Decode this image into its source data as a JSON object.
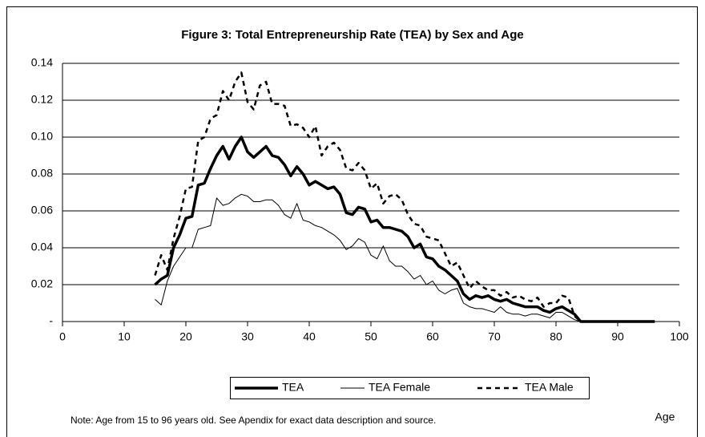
{
  "chart_data": {
    "type": "line",
    "title": "Figure 3: Total Entrepreneurship Rate (TEA) by Sex and Age",
    "x_label": "Age",
    "note": "Note: Age from 15 to 96 years old. See Apendix for exact data description and source.",
    "x": [
      15,
      16,
      17,
      18,
      19,
      20,
      21,
      22,
      23,
      24,
      25,
      26,
      27,
      28,
      29,
      30,
      31,
      32,
      33,
      34,
      35,
      36,
      37,
      38,
      39,
      40,
      41,
      42,
      43,
      44,
      45,
      46,
      47,
      48,
      49,
      50,
      51,
      52,
      53,
      54,
      55,
      56,
      57,
      58,
      59,
      60,
      61,
      62,
      63,
      64,
      65,
      66,
      67,
      68,
      69,
      70,
      71,
      72,
      73,
      74,
      75,
      76,
      77,
      78,
      79,
      80,
      81,
      82,
      83,
      84,
      85,
      86,
      87,
      88,
      89,
      90,
      91,
      92,
      93,
      94,
      95,
      96
    ],
    "series": [
      {
        "name": "TEA",
        "color": "#000000",
        "line_style": "solid",
        "values": [
          0.02,
          0.023,
          0.025,
          0.04,
          0.047,
          0.056,
          0.057,
          0.074,
          0.075,
          0.083,
          0.09,
          0.095,
          0.088,
          0.095,
          0.1,
          0.092,
          0.089,
          0.092,
          0.095,
          0.09,
          0.089,
          0.085,
          0.079,
          0.084,
          0.08,
          0.074,
          0.076,
          0.074,
          0.072,
          0.073,
          0.069,
          0.059,
          0.058,
          0.062,
          0.061,
          0.054,
          0.055,
          0.051,
          0.051,
          0.05,
          0.049,
          0.046,
          0.04,
          0.042,
          0.035,
          0.034,
          0.03,
          0.028,
          0.025,
          0.022,
          0.015,
          0.012,
          0.014,
          0.013,
          0.014,
          0.012,
          0.011,
          0.012,
          0.01,
          0.009,
          0.008,
          0.008,
          0.008,
          0.006,
          0.005,
          0.007,
          0.008,
          0.006,
          0.004,
          0,
          0,
          0,
          0,
          0,
          0,
          0,
          0,
          0,
          0,
          0,
          0,
          0
        ]
      },
      {
        "name": "TEA Female",
        "color": "#000000",
        "line_style": "thin",
        "values": [
          0.012,
          0.009,
          0.022,
          0.03,
          0.035,
          0.04,
          0.04,
          0.05,
          0.051,
          0.052,
          0.067,
          0.063,
          0.064,
          0.067,
          0.069,
          0.068,
          0.065,
          0.065,
          0.066,
          0.066,
          0.063,
          0.058,
          0.056,
          0.064,
          0.055,
          0.054,
          0.052,
          0.051,
          0.049,
          0.047,
          0.044,
          0.039,
          0.041,
          0.045,
          0.043,
          0.036,
          0.034,
          0.041,
          0.033,
          0.03,
          0.03,
          0.027,
          0.023,
          0.025,
          0.02,
          0.022,
          0.017,
          0.015,
          0.017,
          0.018,
          0.01,
          0.008,
          0.007,
          0.007,
          0.006,
          0.005,
          0.008,
          0.005,
          0.004,
          0.004,
          0.003,
          0.004,
          0.004,
          0.003,
          0.002,
          0.005,
          0.005,
          0.003,
          0.001,
          0,
          0,
          0,
          0,
          0,
          0,
          0,
          0,
          0,
          0,
          0,
          0,
          0
        ]
      },
      {
        "name": "TEA Male",
        "color": "#000000",
        "line_style": "dashed",
        "values": [
          0.025,
          0.036,
          0.028,
          0.045,
          0.057,
          0.072,
          0.073,
          0.098,
          0.1,
          0.11,
          0.112,
          0.125,
          0.12,
          0.13,
          0.135,
          0.119,
          0.115,
          0.128,
          0.13,
          0.118,
          0.118,
          0.117,
          0.106,
          0.107,
          0.105,
          0.1,
          0.106,
          0.09,
          0.095,
          0.097,
          0.093,
          0.083,
          0.082,
          0.086,
          0.082,
          0.072,
          0.075,
          0.064,
          0.068,
          0.069,
          0.066,
          0.058,
          0.053,
          0.052,
          0.046,
          0.045,
          0.044,
          0.037,
          0.03,
          0.032,
          0.025,
          0.018,
          0.022,
          0.019,
          0.017,
          0.017,
          0.014,
          0.016,
          0.013,
          0.014,
          0.012,
          0.011,
          0.013,
          0.008,
          0.01,
          0.01,
          0.014,
          0.013,
          0.003,
          0,
          0,
          0,
          0,
          0,
          0,
          0,
          0,
          0,
          0,
          0,
          0,
          0
        ]
      }
    ],
    "xlim": [
      0,
      100
    ],
    "xticks": [
      0,
      10,
      20,
      30,
      40,
      50,
      60,
      70,
      80,
      90,
      100
    ],
    "ylim": [
      0,
      0.14
    ],
    "yticks": [
      {
        "value": 0,
        "label": "-"
      },
      0.02,
      0.04,
      0.06,
      0.08,
      {
        "value": 0.1,
        "label": "0.10"
      },
      0.12,
      0.14
    ],
    "grid": true
  }
}
